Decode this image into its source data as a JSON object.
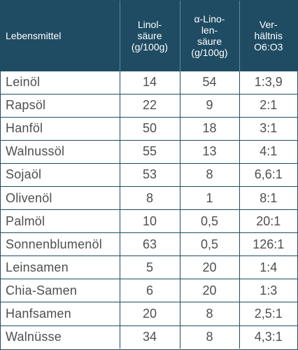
{
  "header": {
    "food": "Lebensmittel",
    "linoleic": [
      "Linol-",
      "säure",
      "(g/100g)"
    ],
    "alpha_linolenic": [
      "α-Lino-",
      "len-",
      "säure",
      "(g/100g)"
    ],
    "ratio": [
      "Ver-",
      "hältnis",
      "O6:O3"
    ]
  },
  "rows": [
    {
      "name": "Leinöl",
      "linol": "14",
      "alpha": "54",
      "ratio": "1:3,9"
    },
    {
      "name": "Rapsöl",
      "linol": "22",
      "alpha": "9",
      "ratio": "2:1"
    },
    {
      "name": "Hanföl",
      "linol": "50",
      "alpha": "18",
      "ratio": "3:1"
    },
    {
      "name": "Walnussöl",
      "linol": "55",
      "alpha": "13",
      "ratio": "4:1"
    },
    {
      "name": "Sojaöl",
      "linol": "53",
      "alpha": "8",
      "ratio": "6,6:1"
    },
    {
      "name": "Olivenöl",
      "linol": "8",
      "alpha": "1",
      "ratio": "8:1"
    },
    {
      "name": "Palmöl",
      "linol": "10",
      "alpha": "0,5",
      "ratio": "20:1"
    },
    {
      "name": "Sonnenblumenöl",
      "linol": "63",
      "alpha": "0,5",
      "ratio": "126:1"
    },
    {
      "name": "Leinsamen",
      "linol": "5",
      "alpha": "20",
      "ratio": "1:4"
    },
    {
      "name": "Chia-Samen",
      "linol": "6",
      "alpha": "20",
      "ratio": "1:3"
    },
    {
      "name": "Hanfsamen",
      "linol": "20",
      "alpha": "8",
      "ratio": "2,5:1"
    },
    {
      "name": "Walnüsse",
      "linol": "34",
      "alpha": "8",
      "ratio": "4,3:1"
    }
  ],
  "colors": {
    "header_bg": "#1f4c63",
    "header_text": "#ffffff",
    "grid_line": "#1f4c63",
    "body_text": "#4f4f4f"
  }
}
